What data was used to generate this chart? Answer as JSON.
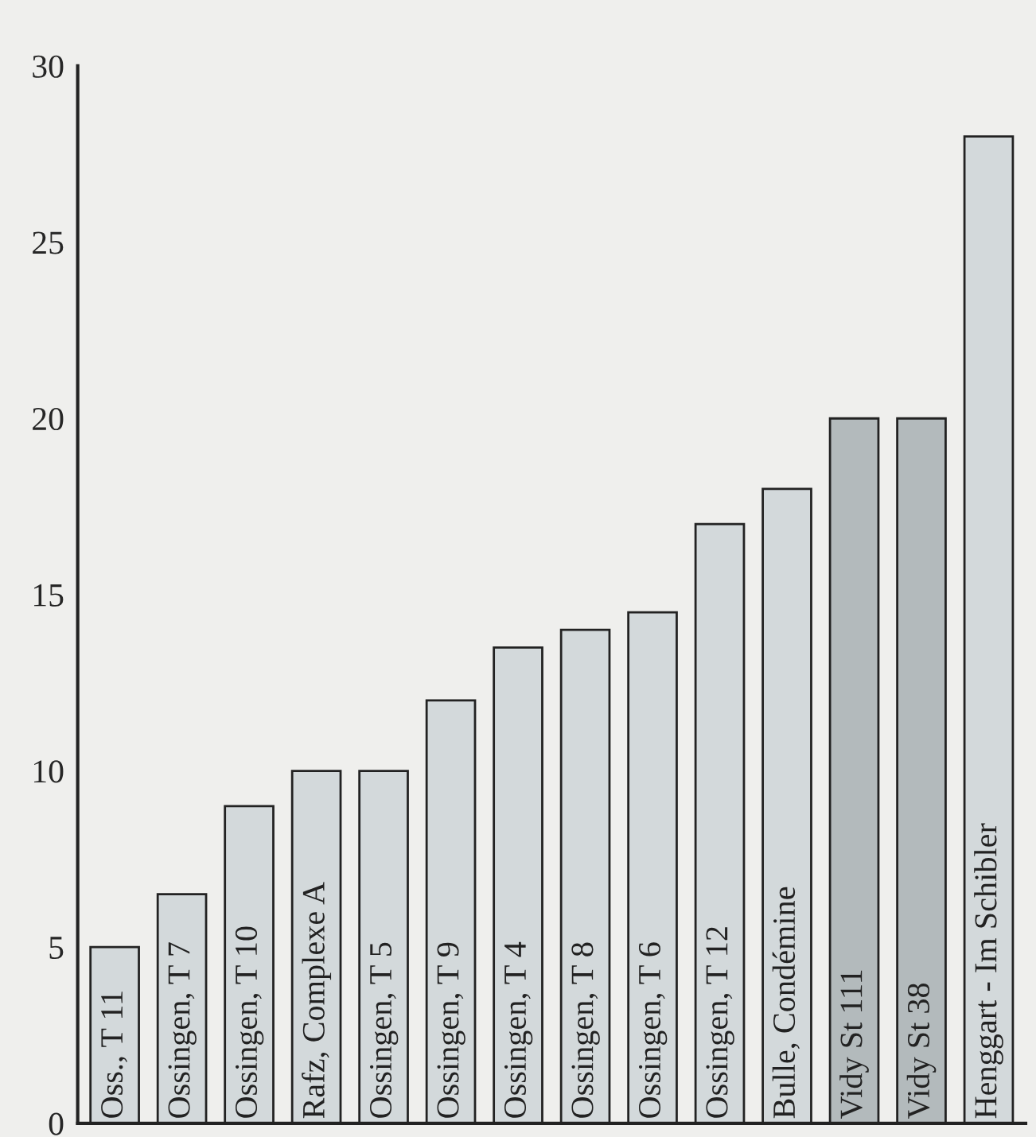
{
  "chart_data": {
    "type": "bar",
    "categories": [
      "Oss., T 11",
      "Ossingen, T 7",
      "Ossingen, T 10",
      "Rafz, Complexe A",
      "Ossingen, T 5",
      "Ossingen, T 9",
      "Ossingen, T 4",
      "Ossingen, T 8",
      "Ossingen, T 6",
      "Ossingen, T 12",
      "Bulle, Condémine",
      "Vidy St 111",
      "Vidy St 38",
      "Henggart - Im Schibler"
    ],
    "values": [
      5,
      6.5,
      9,
      10,
      10,
      12,
      13.5,
      14,
      14.5,
      17,
      18,
      20,
      20,
      28
    ],
    "colors": [
      "#d3d9db",
      "#d3d9db",
      "#d3d9db",
      "#d3d9db",
      "#d3d9db",
      "#d3d9db",
      "#d3d9db",
      "#d3d9db",
      "#d3d9db",
      "#d3d9db",
      "#d3d9db",
      "#b3babc",
      "#b3babc",
      "#d3d9db"
    ],
    "ylim": [
      0,
      30
    ],
    "yticks": [
      0,
      5,
      10,
      15,
      20,
      25,
      30
    ],
    "grid": false,
    "legend": false
  }
}
